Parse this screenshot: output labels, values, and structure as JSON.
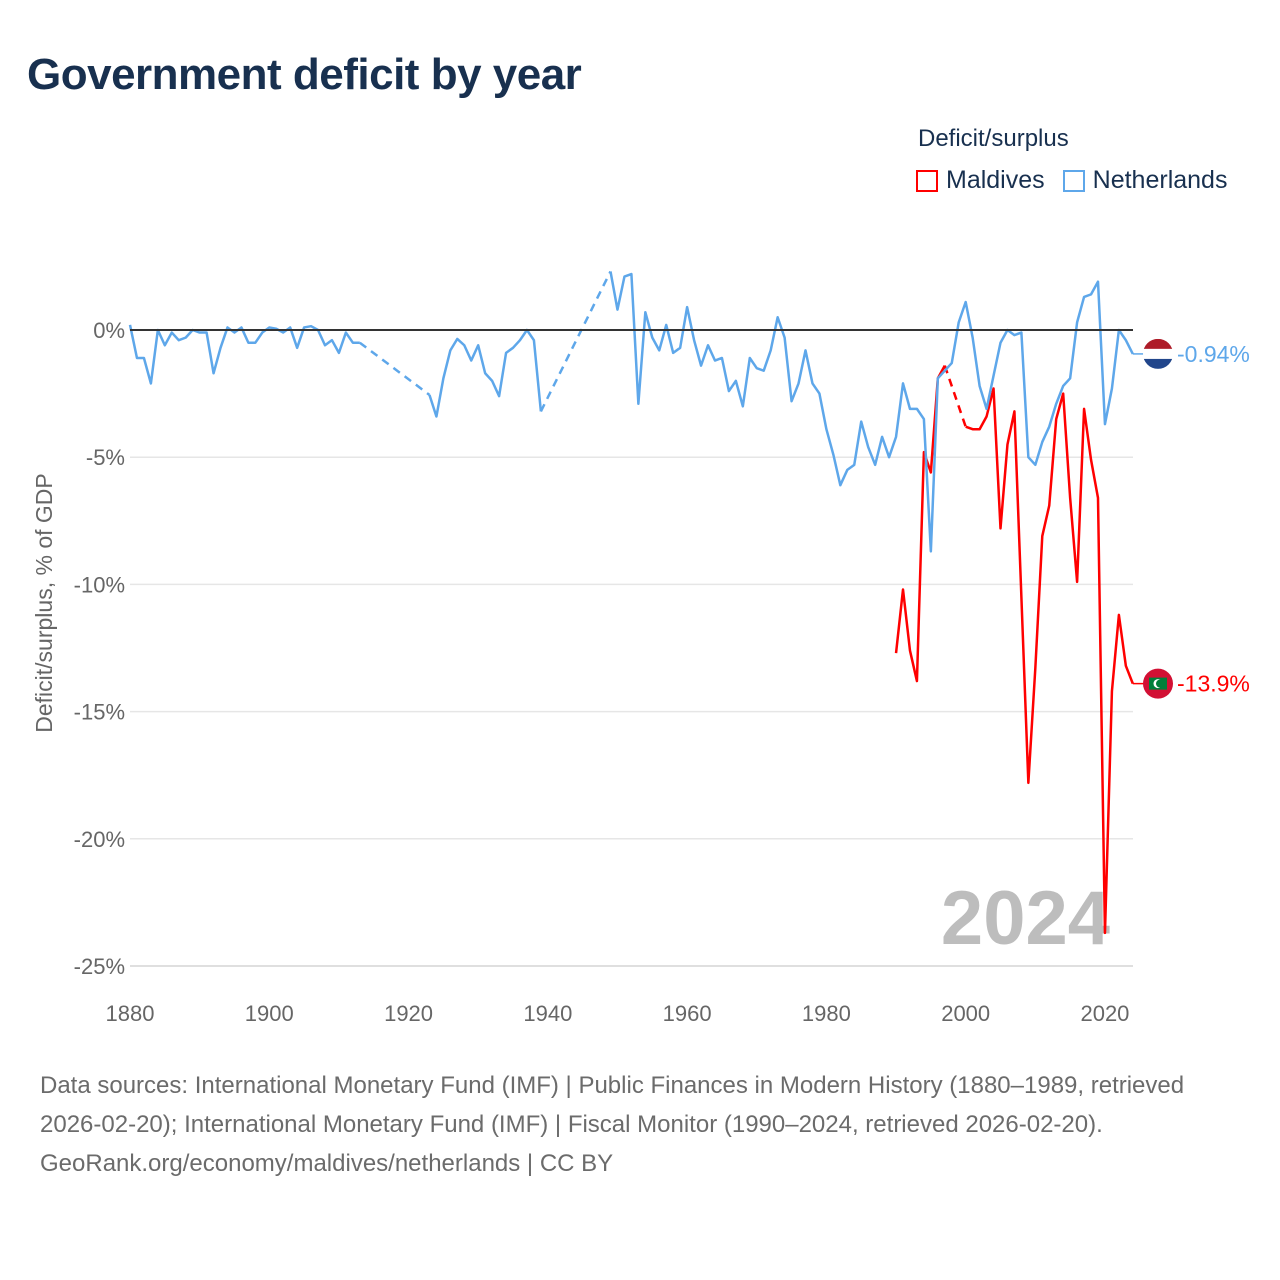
{
  "title": "Government deficit by year",
  "footer": {
    "sources": "Data sources: International Monetary Fund (IMF) | Public Finances in Modern History (1880–1989, retrieved 2026-02-20); International Monetary Fund (IMF) | Fiscal Monitor (1990–2024, retrieved 2026-02-20).",
    "credit": "GeoRank.org/economy/maldives/netherlands | CC BY"
  },
  "chart_data": {
    "type": "line",
    "title": "Government deficit by year",
    "ylabel": "Deficit/surplus, % of GDP",
    "xlabel": "",
    "xlim": [
      1880,
      2024
    ],
    "ylim": [
      -25,
      2.5
    ],
    "x_ticks": [
      1880,
      1900,
      1920,
      1940,
      1960,
      1980,
      2000,
      2020
    ],
    "y_ticks": [
      0,
      -5,
      -10,
      -15,
      -20,
      -25
    ],
    "y_tick_labels": [
      "0%",
      "-5%",
      "-10%",
      "-15%",
      "-20%",
      "-25%"
    ],
    "x_tick_labels": [
      "1880",
      "1900",
      "1920",
      "1940",
      "1960",
      "1980",
      "2000",
      "2020"
    ],
    "year_label": "2024",
    "legend": {
      "title": "Deficit/surplus",
      "placement": "top-right"
    },
    "grid": true,
    "series": [
      {
        "name": "Maldives",
        "color": "#ff0000",
        "end_label": "-13.9%",
        "flag": "maldives-flag",
        "start_year": 1990,
        "values": [
          -12.7,
          -10.2,
          -12.6,
          -13.8,
          -4.8,
          -5.6,
          -1.9,
          -1.4,
          null,
          null,
          -3.8,
          -3.9,
          -3.9,
          -3.4,
          -2.3,
          -7.8,
          -4.5,
          -3.2,
          -10.5,
          -17.8,
          -13.3,
          -8.1,
          -6.9,
          -3.5,
          -2.5,
          -6.6,
          -9.9,
          -3.1,
          -5.1,
          -6.6,
          -23.7,
          -14.2,
          -11.2,
          -13.2,
          -13.9
        ]
      },
      {
        "name": "Netherlands",
        "color": "#5ea7ea",
        "end_label": "-0.94%",
        "flag": "netherlands-flag",
        "start_year": 1880,
        "values": [
          0.2,
          -1.1,
          -1.1,
          -2.1,
          0.0,
          -0.6,
          -0.1,
          -0.4,
          -0.3,
          0.0,
          -0.1,
          -0.1,
          -1.7,
          -0.7,
          0.1,
          -0.1,
          0.1,
          -0.5,
          -0.5,
          -0.1,
          0.1,
          0.05,
          -0.1,
          0.1,
          -0.7,
          0.1,
          0.15,
          0.0,
          -0.6,
          -0.4,
          -0.9,
          -0.1,
          -0.5,
          -0.5,
          null,
          null,
          null,
          null,
          null,
          null,
          null,
          null,
          null,
          -2.55,
          -3.4,
          -1.9,
          -0.8,
          -0.35,
          -0.6,
          -1.2,
          -0.6,
          -1.7,
          -2.0,
          -2.6,
          -0.9,
          -0.7,
          -0.4,
          0.0,
          -0.4,
          -3.2,
          null,
          null,
          null,
          null,
          null,
          null,
          null,
          null,
          null,
          2.3,
          0.8,
          2.1,
          2.2,
          -2.9,
          0.7,
          -0.3,
          -0.8,
          0.2,
          -0.9,
          -0.7,
          0.9,
          -0.4,
          -1.4,
          -0.6,
          -1.2,
          -1.1,
          -2.4,
          -2.0,
          -3.0,
          -1.1,
          -1.5,
          -1.6,
          -0.8,
          0.5,
          -0.3,
          -2.8,
          -2.1,
          -0.8,
          -2.1,
          -2.5,
          -3.9,
          -4.9,
          -6.1,
          -5.5,
          -5.3,
          -3.6,
          -4.6,
          -5.3,
          -4.2,
          -5.0,
          -4.2,
          -2.1,
          -3.1,
          -3.1,
          -3.5,
          -8.7,
          -1.9,
          -1.6,
          -1.3,
          0.3,
          1.1,
          -0.3,
          -2.2,
          -3.1,
          -1.8,
          -0.5,
          0.0,
          -0.2,
          -0.1,
          -5.0,
          -5.3,
          -4.4,
          -3.8,
          -2.9,
          -2.2,
          -1.9,
          0.3,
          1.3,
          1.4,
          1.9,
          -3.7,
          -2.3,
          0.0,
          -0.4,
          -0.94
        ]
      }
    ]
  }
}
